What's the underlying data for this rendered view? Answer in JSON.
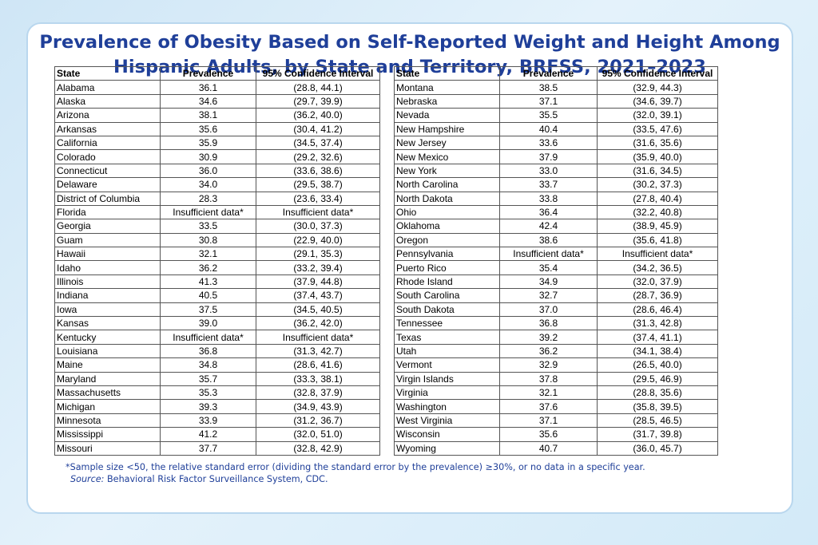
{
  "title": {
    "line1": "Prevalence of Obesity Based on Self-Reported Weight and Height Among",
    "line2": "Hispanic Adults, by State and Territory, BRFSS, 2021–2023"
  },
  "columns": {
    "state": "State",
    "prevalence": "Prevalence",
    "ci": "95% Confidence Interval"
  },
  "left_rows": [
    [
      "Alabama",
      "36.1",
      "(28.8, 44.1)"
    ],
    [
      "Alaska",
      "34.6",
      "(29.7, 39.9)"
    ],
    [
      "Arizona",
      "38.1",
      "(36.2, 40.0)"
    ],
    [
      "Arkansas",
      "35.6",
      "(30.4, 41.2)"
    ],
    [
      "California",
      "35.9",
      "(34.5, 37.4)"
    ],
    [
      "Colorado",
      "30.9",
      "(29.2, 32.6)"
    ],
    [
      "Connecticut",
      "36.0",
      "(33.6, 38.6)"
    ],
    [
      "Delaware",
      "34.0",
      "(29.5, 38.7)"
    ],
    [
      "District of Columbia",
      "28.3",
      "(23.6, 33.4)"
    ],
    [
      "Florida",
      "Insufficient data*",
      "Insufficient data*"
    ],
    [
      "Georgia",
      "33.5",
      "(30.0, 37.3)"
    ],
    [
      "Guam",
      "30.8",
      "(22.9, 40.0)"
    ],
    [
      "Hawaii",
      "32.1",
      "(29.1, 35.3)"
    ],
    [
      "Idaho",
      "36.2",
      "(33.2, 39.4)"
    ],
    [
      "Illinois",
      "41.3",
      "(37.9, 44.8)"
    ],
    [
      "Indiana",
      "40.5",
      "(37.4, 43.7)"
    ],
    [
      "Iowa",
      "37.5",
      "(34.5, 40.5)"
    ],
    [
      "Kansas",
      "39.0",
      "(36.2, 42.0)"
    ],
    [
      "Kentucky",
      "Insufficient data*",
      "Insufficient data*"
    ],
    [
      "Louisiana",
      "36.8",
      "(31.3, 42.7)"
    ],
    [
      "Maine",
      "34.8",
      "(28.6, 41.6)"
    ],
    [
      "Maryland",
      "35.7",
      "(33.3, 38.1)"
    ],
    [
      "Massachusetts",
      "35.3",
      "(32.8, 37.9)"
    ],
    [
      "Michigan",
      "39.3",
      "(34.9, 43.9)"
    ],
    [
      "Minnesota",
      "33.9",
      "(31.2, 36.7)"
    ],
    [
      "Mississippi",
      "41.2",
      "(32.0, 51.0)"
    ],
    [
      "Missouri",
      "37.7",
      "(32.8, 42.9)"
    ]
  ],
  "right_rows": [
    [
      "Montana",
      "38.5",
      "(32.9, 44.3)"
    ],
    [
      "Nebraska",
      "37.1",
      "(34.6, 39.7)"
    ],
    [
      "Nevada",
      "35.5",
      "(32.0, 39.1)"
    ],
    [
      "New Hampshire",
      "40.4",
      "(33.5, 47.6)"
    ],
    [
      "New Jersey",
      "33.6",
      "(31.6, 35.6)"
    ],
    [
      "New Mexico",
      "37.9",
      "(35.9, 40.0)"
    ],
    [
      "New York",
      "33.0",
      "(31.6, 34.5)"
    ],
    [
      "North Carolina",
      "33.7",
      "(30.2, 37.3)"
    ],
    [
      "North Dakota",
      "33.8",
      "(27.8, 40.4)"
    ],
    [
      "Ohio",
      "36.4",
      "(32.2, 40.8)"
    ],
    [
      "Oklahoma",
      "42.4",
      "(38.9, 45.9)"
    ],
    [
      "Oregon",
      "38.6",
      "(35.6, 41.8)"
    ],
    [
      "Pennsylvania",
      "Insufficient data*",
      "Insufficient data*"
    ],
    [
      "Puerto Rico",
      "35.4",
      "(34.2, 36.5)"
    ],
    [
      "Rhode Island",
      "34.9",
      "(32.0, 37.9)"
    ],
    [
      "South Carolina",
      "32.7",
      "(28.7, 36.9)"
    ],
    [
      "South Dakota",
      "37.0",
      "(28.6, 46.4)"
    ],
    [
      "Tennessee",
      "36.8",
      "(31.3, 42.8)"
    ],
    [
      "Texas",
      "39.2",
      "(37.4, 41.1)"
    ],
    [
      "Utah",
      "36.2",
      "(34.1, 38.4)"
    ],
    [
      "Vermont",
      "32.9",
      "(26.5, 40.0)"
    ],
    [
      "Virgin Islands",
      "37.8",
      "(29.5, 46.9)"
    ],
    [
      "Virginia",
      "32.1",
      "(28.8, 35.6)"
    ],
    [
      "Washington",
      "37.6",
      "(35.8, 39.5)"
    ],
    [
      "West Virginia",
      "37.1",
      "(28.5, 46.5)"
    ],
    [
      "Wisconsin",
      "35.6",
      "(31.7, 39.8)"
    ],
    [
      "Wyoming",
      "40.7",
      "(36.0, 45.7)"
    ]
  ],
  "footnote": "*Sample size <50, the relative standard error (dividing the standard error by the prevalence) ≥30%, or no data in a specific year.",
  "source": {
    "label": "Source:",
    "text": " Behavioral Risk Factor Surveillance System, CDC."
  },
  "colors": {
    "title": "#1f3f99",
    "background": "#d8ecf8",
    "card_border": "#b9d7ee"
  }
}
